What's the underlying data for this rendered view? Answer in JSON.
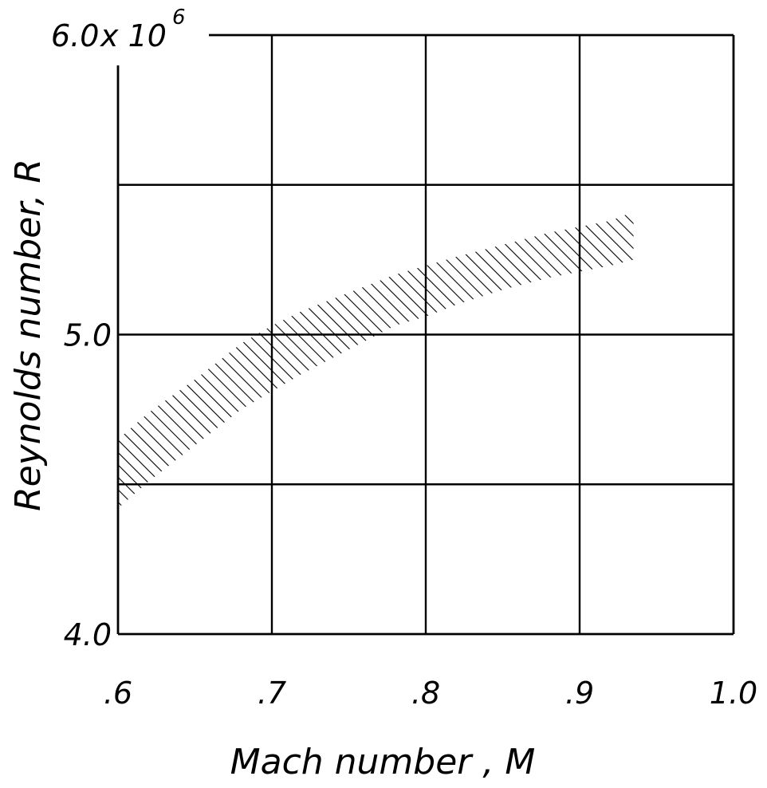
{
  "chart_data": {
    "type": "area",
    "xlabel": "Mach number , M",
    "ylabel": "Reynolds number, R",
    "xlim": [
      0.6,
      1.0
    ],
    "ylim": [
      4.0,
      6.0
    ],
    "x_ticks": [
      ".6",
      ".7",
      ".8",
      ".9",
      "1.0"
    ],
    "y_ticks": [
      "4.0",
      "5.0",
      "6.0"
    ],
    "y_multiplier_label": "x 10",
    "y_multiplier_exponent": "6",
    "grid": true,
    "band": {
      "fill": "hatched",
      "x": [
        0.6,
        0.62,
        0.65,
        0.68,
        0.7,
        0.72,
        0.75,
        0.78,
        0.8,
        0.82,
        0.85,
        0.88,
        0.9,
        0.92,
        0.935
      ],
      "upper": [
        4.65,
        4.74,
        4.85,
        4.97,
        5.03,
        5.08,
        5.14,
        5.2,
        5.23,
        5.26,
        5.3,
        5.34,
        5.36,
        5.38,
        5.41
      ],
      "lower": [
        4.42,
        4.51,
        4.63,
        4.75,
        4.81,
        4.87,
        4.95,
        5.03,
        5.06,
        5.1,
        5.15,
        5.19,
        5.21,
        5.23,
        5.25
      ]
    },
    "colors": {
      "ink": "#000000",
      "background": "#ffffff"
    }
  }
}
